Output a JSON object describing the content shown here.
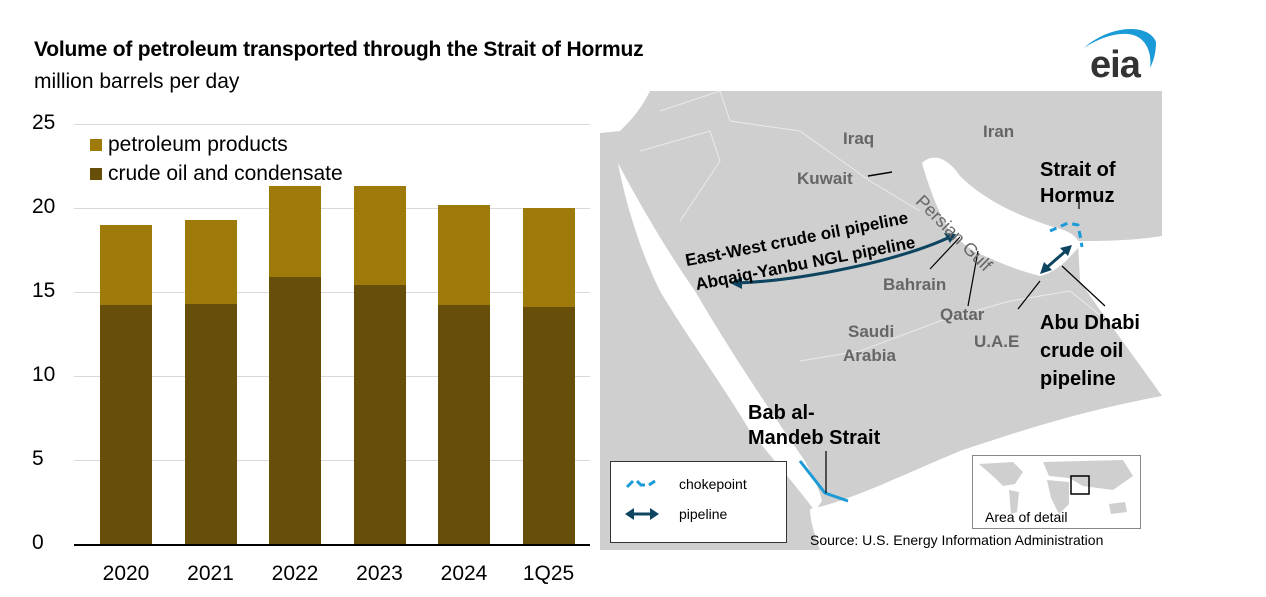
{
  "header": {
    "title": "Volume of petroleum transported through the Strait of Hormuz",
    "subtitle": "million barrels per day",
    "logo": "eia"
  },
  "chart_data": {
    "type": "bar",
    "stacked": true,
    "title": "Volume of petroleum transported through the Strait of Hormuz",
    "subtitle": "million barrels per day",
    "xlabel": "",
    "ylabel": "million barrels per day",
    "categories": [
      "2020",
      "2021",
      "2022",
      "2023",
      "2024",
      "1Q25"
    ],
    "series": [
      {
        "name": "crude oil and condensate",
        "color": "#674f09",
        "values": [
          14.2,
          14.3,
          15.9,
          15.4,
          14.2,
          14.1
        ]
      },
      {
        "name": "petroleum products",
        "color": "#9e7a0b",
        "values": [
          4.8,
          5.0,
          5.4,
          5.9,
          6.0,
          5.9
        ]
      }
    ],
    "totals": [
      19.0,
      19.3,
      21.3,
      21.3,
      20.2,
      20.0
    ],
    "yticks": [
      "0",
      "5",
      "10",
      "15",
      "20",
      "25"
    ],
    "ylim": [
      0,
      25
    ],
    "grid": true,
    "legend": {
      "position": "top-left",
      "entries": [
        "petroleum products",
        "crude oil and condensate"
      ]
    }
  },
  "legend": {
    "items": [
      {
        "label": "petroleum products",
        "color": "#9e7a0b"
      },
      {
        "label": "crude oil and condensate",
        "color": "#674f09"
      }
    ]
  },
  "map": {
    "countries": [
      "Iraq",
      "Iran",
      "Kuwait",
      "Bahrain",
      "Qatar",
      "Saudi Arabia",
      "U.A.E"
    ],
    "labels": {
      "iraq": "Iraq",
      "iran": "Iran",
      "kuwait": "Kuwait",
      "bahrain": "Bahrain",
      "qatar": "Qatar",
      "saudi1": "Saudi",
      "saudi2": "Arabia",
      "uae": "U.A.E",
      "gulf": "Persian Gulf"
    },
    "callouts": {
      "hormuz1": "Strait of",
      "hormuz2": "Hormuz",
      "eastwest": "East-West crude oil pipeline",
      "abqaiq": "Abqaiq-Yanbu NGL pipeline",
      "abudhabi1": "Abu Dhabi",
      "abudhabi2": "crude oil",
      "abudhabi3": "pipeline",
      "bab1": "Bab al-",
      "bab2": "Mandeb Strait"
    },
    "key": {
      "chokepoint": "chokepoint",
      "pipeline": "pipeline"
    },
    "inset_label": "Area of detail",
    "colors": {
      "land": "#cfcfcf",
      "water": "#ffffff",
      "chokepoint": "#1a9ad6",
      "pipeline": "#0d4560"
    }
  },
  "source": "Source: U.S. Energy Information Administration"
}
